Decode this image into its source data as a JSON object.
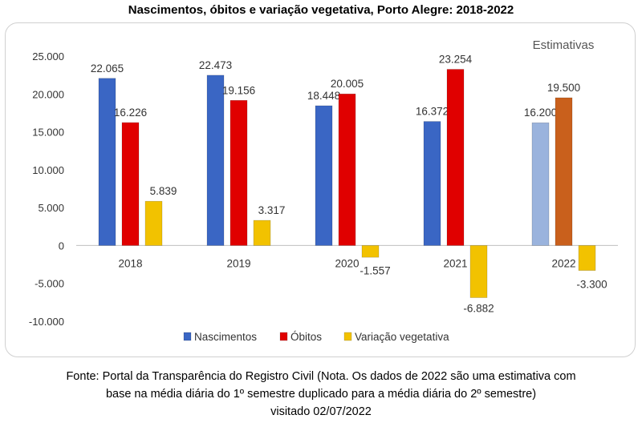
{
  "title": "Nascimentos, óbitos e variação vegetativa, Porto Alegre: 2018-2022",
  "annotation": "Estimativas",
  "source": {
    "line1": "Fonte: Portal da Transparência do Registro Civil  (Nota. Os dados de 2022 são uma estimativa com",
    "line2": "base na média diária do 1º semestre duplicado para a média diária do 2º semestre)",
    "line3": "visitado 02/07/2022"
  },
  "colors": {
    "nascimentos": "#3a66c4",
    "obitos": "#e00000",
    "variacao": "#f2c200",
    "nascimentos_estimate": "#9ab3dd",
    "obitos_estimate": "#c9601c",
    "variacao_estimate": "#f2c200"
  },
  "chart_data": {
    "type": "bar",
    "categories": [
      "2018",
      "2019",
      "2020",
      "2021",
      "2022"
    ],
    "series": [
      {
        "name": "Nascimentos",
        "values": [
          22065,
          22473,
          18448,
          16372,
          16200
        ],
        "labels": [
          "22.065",
          "22.473",
          "18.448",
          "16.372",
          "16.200"
        ]
      },
      {
        "name": "Óbitos",
        "values": [
          16226,
          19156,
          20005,
          23254,
          19500
        ],
        "labels": [
          "16.226",
          "19.156",
          "20.005",
          "23.254",
          "19.500"
        ]
      },
      {
        "name": "Variação vegetativa",
        "values": [
          5839,
          3317,
          -1557,
          -6882,
          -3300
        ],
        "labels": [
          "5.839",
          "3.317",
          "-1.557",
          "-6.882",
          "-3.300"
        ]
      }
    ],
    "estimate_category": "2022",
    "ylim": [
      -10000,
      25000
    ],
    "yticks": [
      25000,
      20000,
      15000,
      10000,
      5000,
      0,
      -5000,
      -10000
    ],
    "ytick_labels": [
      "25.000",
      "20.000",
      "15.000",
      "10.000",
      "5.000",
      "0",
      "-5.000",
      "-10.000"
    ],
    "legend_position": "bottom"
  }
}
